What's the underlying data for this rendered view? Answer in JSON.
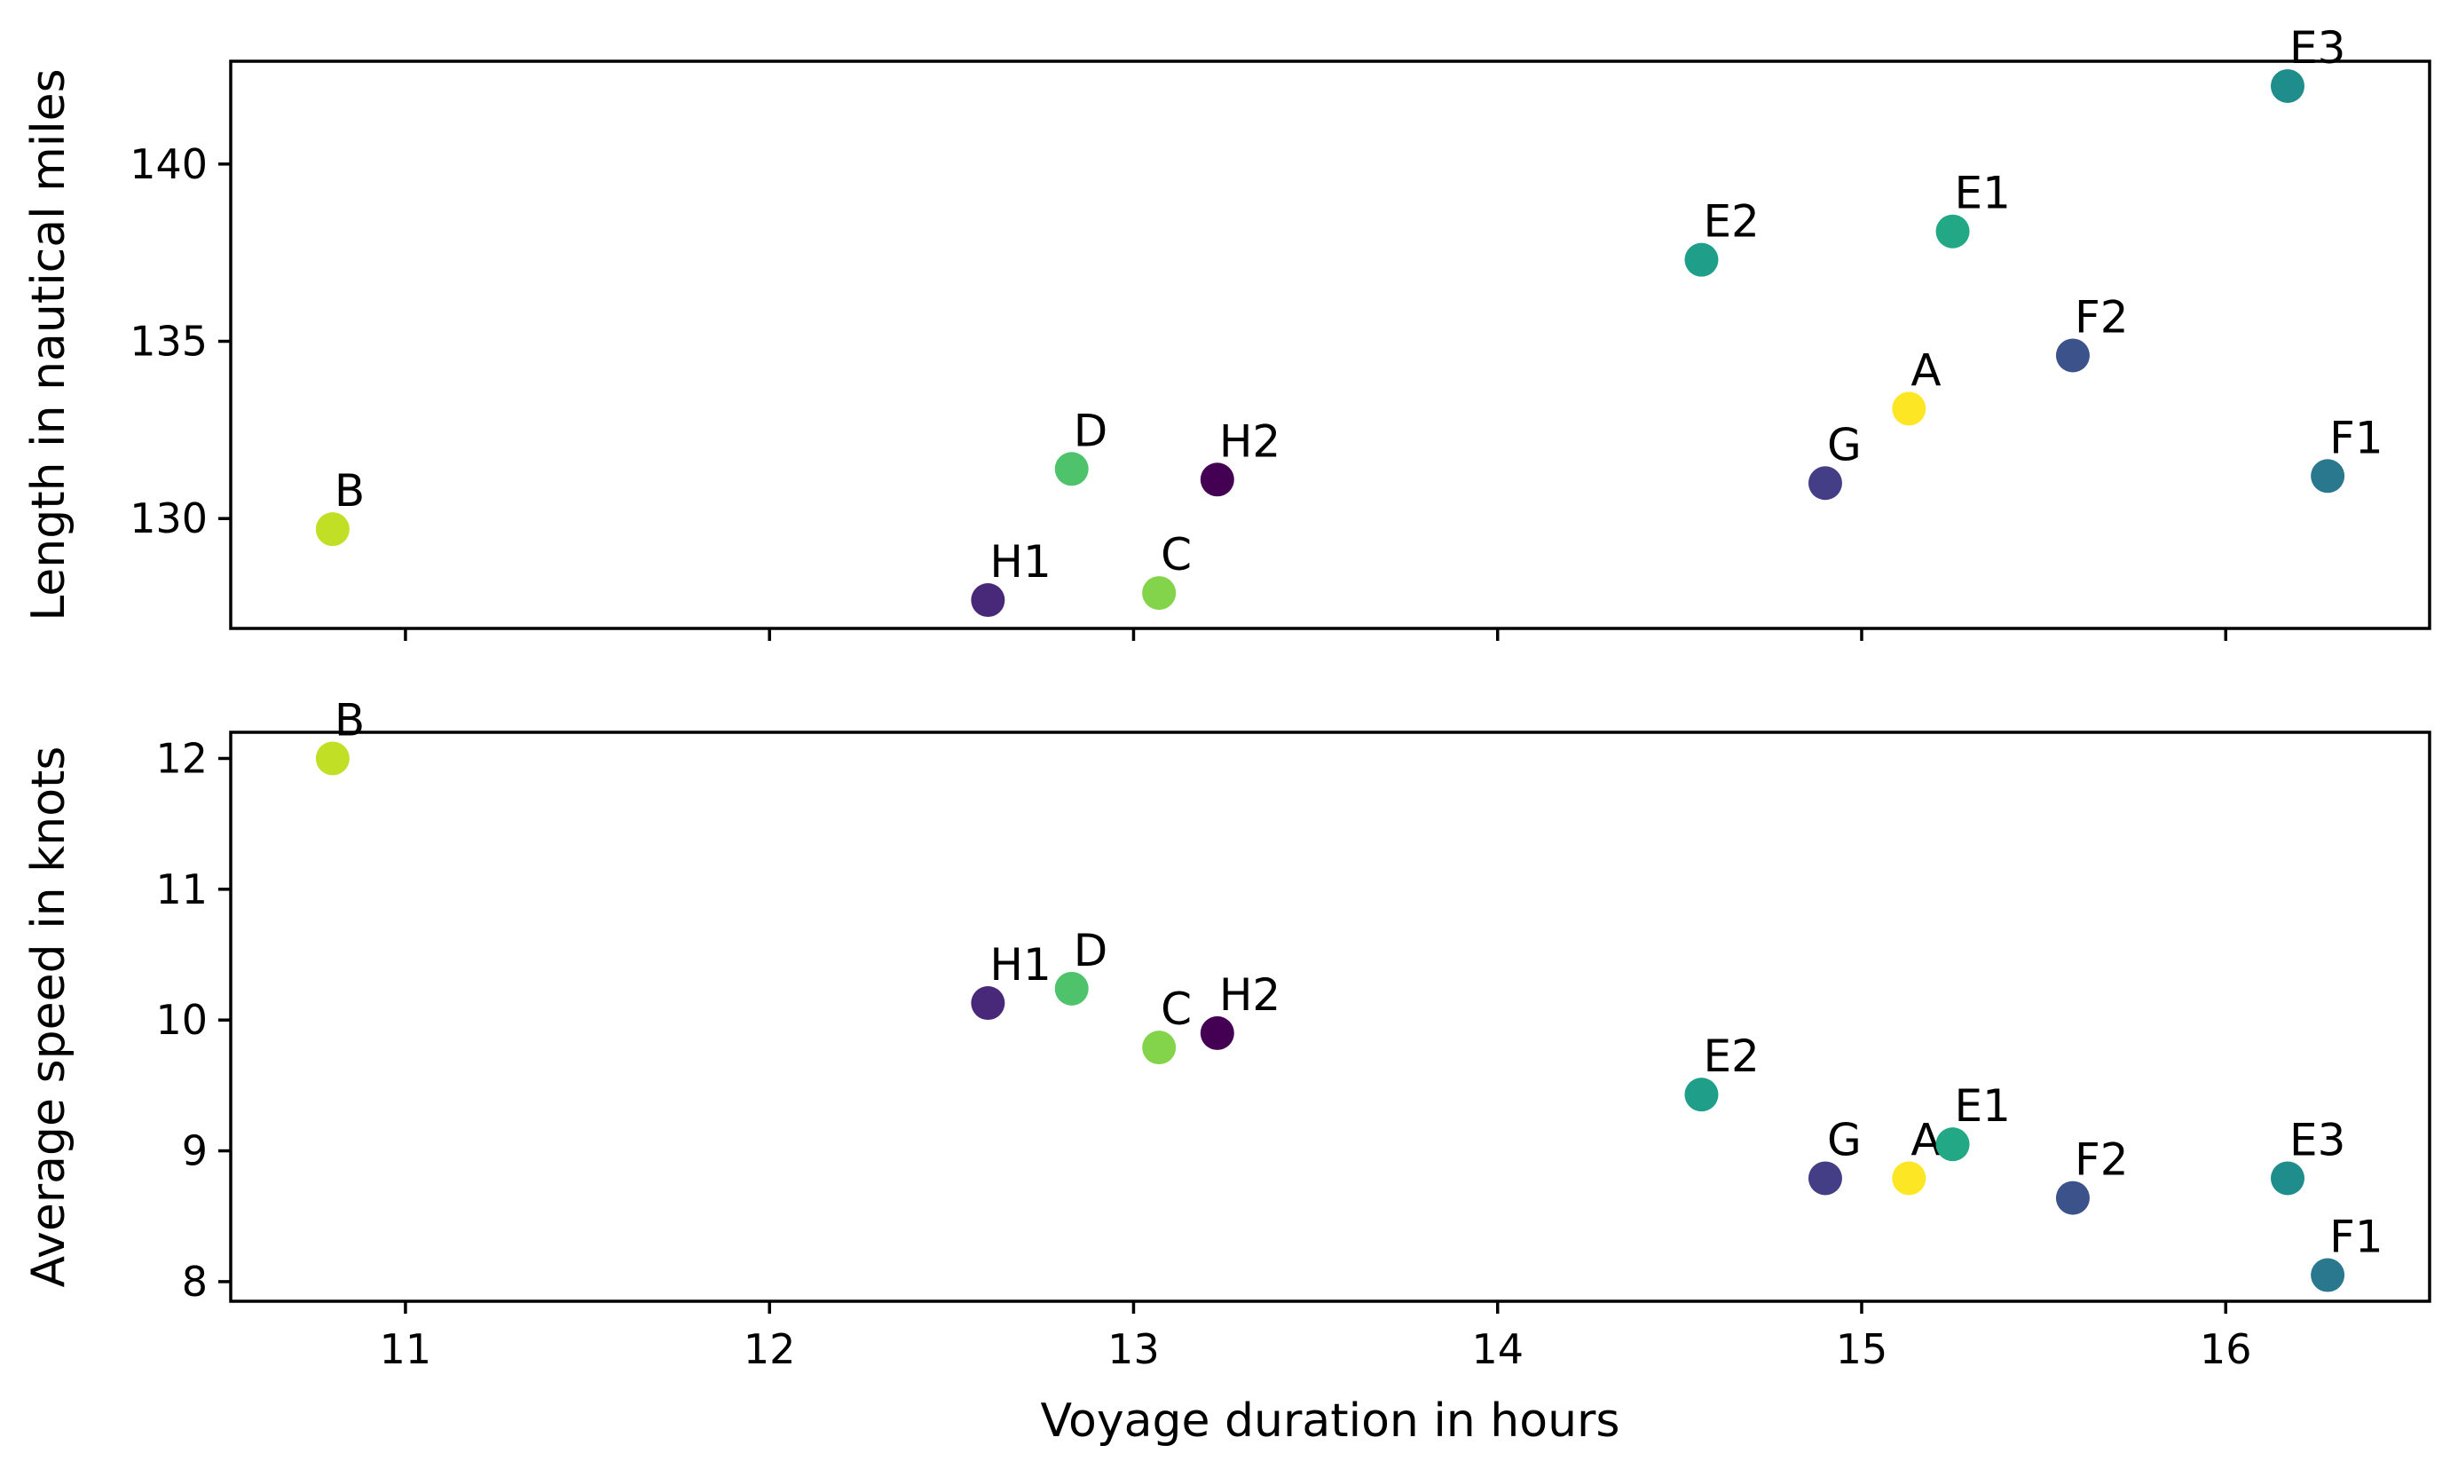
{
  "chart_data": [
    {
      "type": "scatter",
      "name": "length-vs-duration",
      "xlabel": "",
      "ylabel": "Length in nautical miles",
      "xlim": [
        10.52,
        16.56
      ],
      "ylim": [
        126.9,
        142.9
      ],
      "xticks": [
        11,
        12,
        13,
        14,
        15,
        16
      ],
      "show_xtick_labels": false,
      "yticks": [
        130,
        135,
        140
      ],
      "points": [
        {
          "label": "A",
          "x": 15.13,
          "y": 133.1,
          "color": "#fde725"
        },
        {
          "label": "B",
          "x": 10.8,
          "y": 129.7,
          "color": "#c0df25"
        },
        {
          "label": "C",
          "x": 13.07,
          "y": 127.9,
          "color": "#84d44b"
        },
        {
          "label": "D",
          "x": 12.83,
          "y": 131.4,
          "color": "#4ec36b"
        },
        {
          "label": "E1",
          "x": 15.25,
          "y": 138.1,
          "color": "#22a884"
        },
        {
          "label": "E2",
          "x": 14.56,
          "y": 137.3,
          "color": "#1f9e89"
        },
        {
          "label": "E3",
          "x": 16.17,
          "y": 142.2,
          "color": "#1f8d8c"
        },
        {
          "label": "F1",
          "x": 16.28,
          "y": 131.2,
          "color": "#2a788e"
        },
        {
          "label": "F2",
          "x": 15.58,
          "y": 134.6,
          "color": "#3b528b"
        },
        {
          "label": "G",
          "x": 14.9,
          "y": 131.0,
          "color": "#433e85"
        },
        {
          "label": "H1",
          "x": 12.6,
          "y": 127.7,
          "color": "#482878"
        },
        {
          "label": "H2",
          "x": 13.23,
          "y": 131.1,
          "color": "#440154"
        }
      ]
    },
    {
      "type": "scatter",
      "name": "speed-vs-duration",
      "xlabel": "Voyage duration in hours",
      "ylabel": "Average speed in knots",
      "xlim": [
        10.52,
        16.56
      ],
      "ylim": [
        7.85,
        12.2
      ],
      "xticks": [
        11,
        12,
        13,
        14,
        15,
        16
      ],
      "show_xtick_labels": true,
      "yticks": [
        8,
        9,
        10,
        11,
        12
      ],
      "points": [
        {
          "label": "A",
          "x": 15.13,
          "y": 8.79,
          "color": "#fde725"
        },
        {
          "label": "B",
          "x": 10.8,
          "y": 12.0,
          "color": "#c0df25"
        },
        {
          "label": "C",
          "x": 13.07,
          "y": 9.79,
          "color": "#84d44b"
        },
        {
          "label": "D",
          "x": 12.83,
          "y": 10.24,
          "color": "#4ec36b"
        },
        {
          "label": "E1",
          "x": 15.25,
          "y": 9.05,
          "color": "#22a884"
        },
        {
          "label": "E2",
          "x": 14.56,
          "y": 9.43,
          "color": "#1f9e89"
        },
        {
          "label": "E3",
          "x": 16.17,
          "y": 8.79,
          "color": "#1f8d8c"
        },
        {
          "label": "F1",
          "x": 16.28,
          "y": 8.05,
          "color": "#2a788e"
        },
        {
          "label": "F2",
          "x": 15.58,
          "y": 8.64,
          "color": "#3b528b"
        },
        {
          "label": "G",
          "x": 14.9,
          "y": 8.79,
          "color": "#433e85"
        },
        {
          "label": "H1",
          "x": 12.6,
          "y": 10.13,
          "color": "#482878"
        },
        {
          "label": "H2",
          "x": 13.23,
          "y": 9.9,
          "color": "#440154"
        }
      ]
    }
  ]
}
